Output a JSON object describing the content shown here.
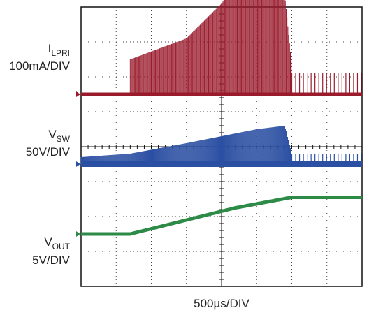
{
  "chart_data": {
    "type": "line",
    "title": "",
    "xlabel": "500µs/DIV",
    "x_divisions": 8,
    "y_divisions": 8,
    "x_range_us": [
      0,
      4000
    ],
    "grid": true,
    "channels": [
      {
        "label_main": "I",
        "label_sub": "LPRI",
        "scale": "100mA/DIV",
        "color": "#9a1b2c",
        "baseline_div": 2.5,
        "trace": "switching current: zero before ~700µs, ramping peak to ~5 div at ~2800µs, dropping back to zero by ~3000µs, sparse pulses after",
        "envelope_peak_div": [
          {
            "t_us": 0,
            "peak": 0
          },
          {
            "t_us": 680,
            "peak": 0
          },
          {
            "t_us": 700,
            "peak": 1.0
          },
          {
            "t_us": 1500,
            "peak": 1.6
          },
          {
            "t_us": 2000,
            "peak": 2.6
          },
          {
            "t_us": 2500,
            "peak": 4.0
          },
          {
            "t_us": 2800,
            "peak": 4.9
          },
          {
            "t_us": 3000,
            "peak": 0.8
          },
          {
            "t_us": 4000,
            "peak": 0.8
          }
        ]
      },
      {
        "label_main": "V",
        "label_sub": "SW",
        "scale": "50V/DIV",
        "color": "#2b4fa2",
        "baseline_div": 4.5,
        "trace": "switch node voltage: rising pulse amplitude toward ~3000µs, then steady small pulses",
        "envelope_peak_div": [
          {
            "t_us": 0,
            "peak": 0.2
          },
          {
            "t_us": 700,
            "peak": 0.3
          },
          {
            "t_us": 1500,
            "peak": 0.6
          },
          {
            "t_us": 2500,
            "peak": 1.0
          },
          {
            "t_us": 2900,
            "peak": 1.1
          },
          {
            "t_us": 3000,
            "peak": 0.3
          },
          {
            "t_us": 4000,
            "peak": 0.3
          }
        ]
      },
      {
        "label_main": "V",
        "label_sub": "OUT",
        "scale": "5V/DIV",
        "color": "#2e8b47",
        "baseline_div": 6.5,
        "trace": "output voltage: flat until ~700µs, ramps up by ~1 div until ~3000µs, then flat",
        "points": [
          {
            "t_us": 0,
            "v_div": 0
          },
          {
            "t_us": 700,
            "v_div": 0
          },
          {
            "t_us": 1500,
            "v_div": 0.4
          },
          {
            "t_us": 2200,
            "v_div": 0.75
          },
          {
            "t_us": 3000,
            "v_div": 1.05
          },
          {
            "t_us": 4000,
            "v_div": 1.05
          }
        ]
      }
    ]
  },
  "labels": {
    "ch1_main": "I",
    "ch1_sub": "LPRI",
    "ch1_scale": "100mA/DIV",
    "ch2_main": "V",
    "ch2_sub": "SW",
    "ch2_scale": "50V/DIV",
    "ch3_main": "V",
    "ch3_sub": "OUT",
    "ch3_scale": "5V/DIV",
    "timebase": "500µs/DIV"
  }
}
